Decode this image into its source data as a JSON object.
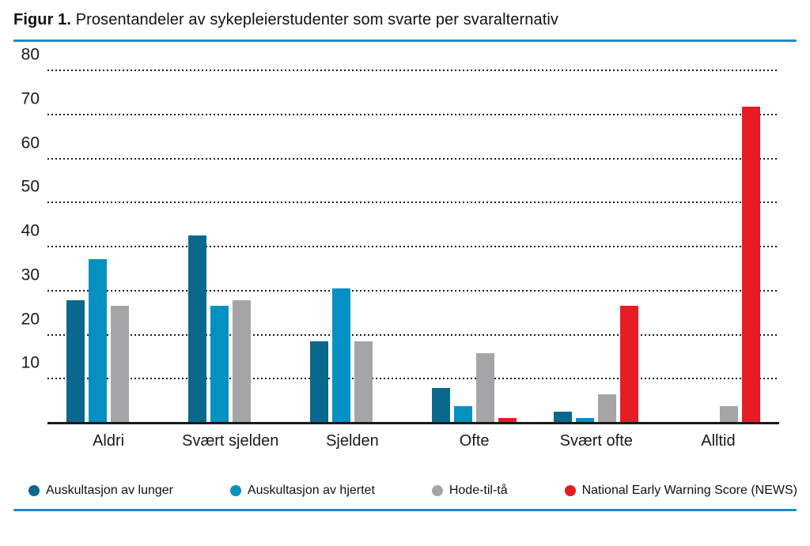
{
  "title": {
    "prefix": "Figur 1.",
    "suffix": "Prosentandeler av sykepleierstudenter som svarte per svaralternativ"
  },
  "rule_color": "#2389CB",
  "chart_data": {
    "type": "bar",
    "title": "Figur 1. Prosentandeler av sykepleierstudenter som svarte per svaralternativ",
    "categories": [
      "Aldri",
      "Svært sjelden",
      "Sjelden",
      "Ofte",
      "Svært ofte",
      "Alltid"
    ],
    "series": [
      {
        "name": "Auskultasjon av lunger",
        "color": "#0A688C",
        "values": [
          28,
          42.7,
          18.7,
          8,
          2.7,
          0
        ]
      },
      {
        "name": "Auskultasjon av hjertet",
        "color": "#0490C1",
        "values": [
          37.3,
          26.7,
          30.7,
          4,
          1.3,
          0
        ]
      },
      {
        "name": "Hode-til-tå",
        "color": "#A5A5A7",
        "values": [
          26.7,
          28,
          18.7,
          16,
          6.7,
          4
        ]
      },
      {
        "name": "National Early Warning Score (NEWS)",
        "color": "#E81C24",
        "values": [
          0,
          0,
          0,
          1.3,
          26.7,
          72
        ]
      }
    ],
    "xlabel": "",
    "ylabel": "",
    "ylim": [
      0,
      80
    ],
    "yticks": [
      10,
      20,
      30,
      40,
      50,
      60,
      70,
      80
    ],
    "grid": "horizontal-dotted",
    "legend_position": "bottom"
  }
}
